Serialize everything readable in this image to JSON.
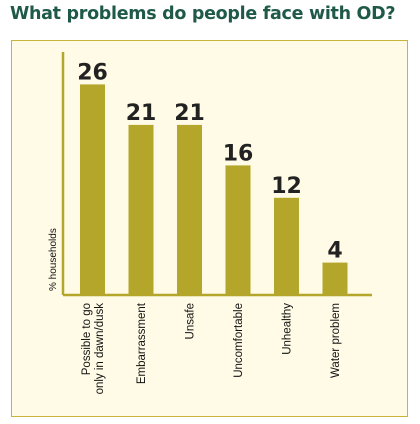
{
  "chart_data": {
    "type": "bar",
    "title": "What problems do people face with OD?",
    "ylabel": "% households",
    "xlabel": "",
    "ylim": [
      0,
      30
    ],
    "grid": false,
    "legend": "none",
    "categories": [
      [
        "Possible to go",
        "only in dawn/dusk"
      ],
      [
        "Embarrassment"
      ],
      [
        "Unsafe"
      ],
      [
        "Uncomfortable"
      ],
      [
        "Unhealthy"
      ],
      [
        "Water problem"
      ]
    ],
    "values": [
      26,
      21,
      21,
      16,
      12,
      4
    ],
    "colors": {
      "bar": "#b4a62a",
      "axis": "#b4a62a",
      "background": "#fffbe6",
      "frame": "#c8b43a",
      "title": "#1f5a48"
    }
  }
}
